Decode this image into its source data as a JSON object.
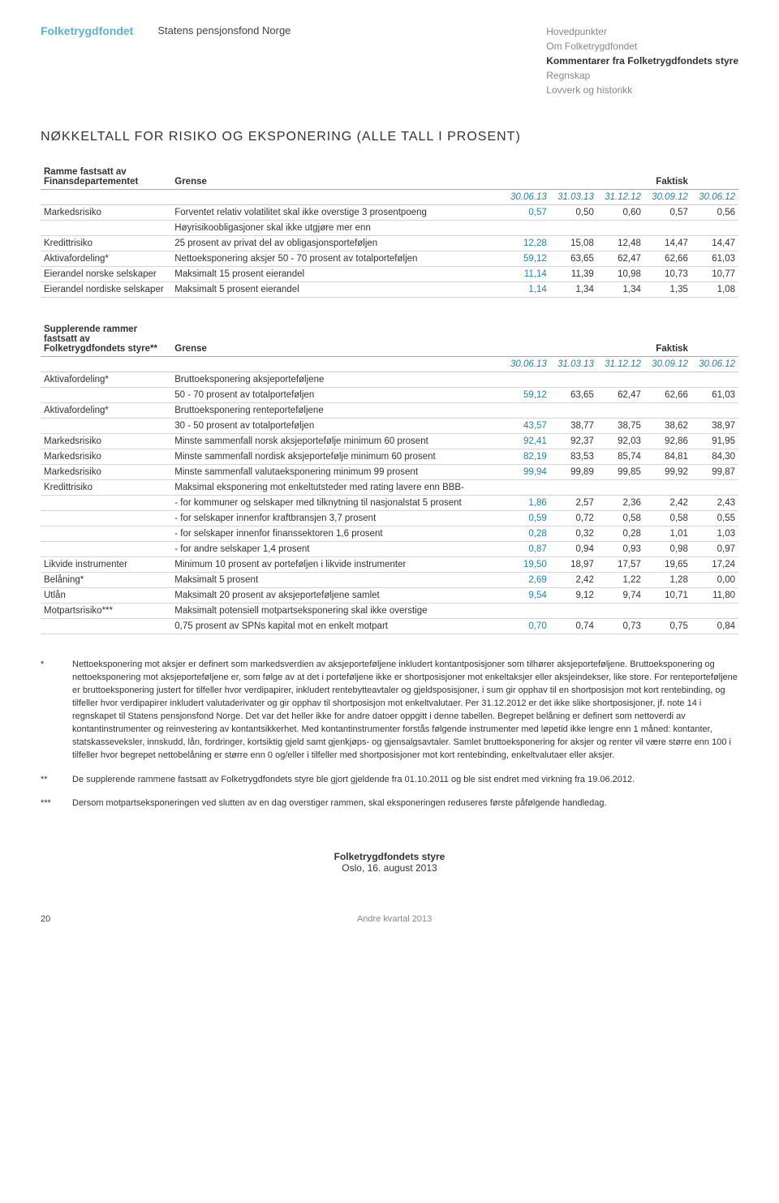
{
  "header": {
    "logo": "Folketrygdfondet",
    "org": "Statens pensjonsfond Norge",
    "nav": [
      "Hovedpunkter",
      "Om Folketrygdfondet",
      "Kommentarer fra Folketrygdfondets styre",
      "Regnskap",
      "Lovverk og historikk"
    ],
    "nav_bold_index": 2
  },
  "section_title": "NØKKELTALL FOR RISIKO OG EKSPONERING (ALLE TALL I PROSENT)",
  "table1": {
    "group_label_lines": [
      "Ramme fastsatt av",
      "Finansdepartementet"
    ],
    "col_grense": "Grense",
    "col_faktisk": "Faktisk",
    "dates": [
      "30.06.13",
      "31.03.13",
      "31.12.12",
      "30.09.12",
      "30.06.12"
    ],
    "rows": [
      {
        "cat": "Markedsrisiko",
        "desc": "Forventet relativ volatilitet skal ikke overstige 3 prosentpoeng",
        "vals": [
          "0,57",
          "0,50",
          "0,60",
          "0,57",
          "0,56"
        ]
      },
      {
        "cat": "",
        "desc": "Høyrisikoobligasjoner skal ikke utgjøre mer enn",
        "vals": [
          "",
          "",
          "",
          "",
          ""
        ]
      },
      {
        "cat": "Kredittrisiko",
        "desc": "25 prosent av privat del av obligasjonsporteføljen",
        "vals": [
          "12,28",
          "15,08",
          "12,48",
          "14,47",
          "14,47"
        ]
      },
      {
        "cat": "Aktivafordeling*",
        "desc": "Nettoeksponering aksjer 50 - 70 prosent av totalporteføljen",
        "vals": [
          "59,12",
          "63,65",
          "62,47",
          "62,66",
          "61,03"
        ]
      },
      {
        "cat": "Eierandel norske selskaper",
        "desc": "Maksimalt 15 prosent eierandel",
        "vals": [
          "11,14",
          "11,39",
          "10,98",
          "10,73",
          "10,77"
        ]
      },
      {
        "cat": "Eierandel nordiske selskaper",
        "desc": "Maksimalt 5 prosent eierandel",
        "vals": [
          "1,14",
          "1,34",
          "1,34",
          "1,35",
          "1,08"
        ]
      }
    ]
  },
  "table2": {
    "group_label_lines": [
      "Supplerende rammer",
      "fastsatt av",
      "Folketrygdfondets styre**"
    ],
    "col_grense": "Grense",
    "col_faktisk": "Faktisk",
    "dates": [
      "30.06.13",
      "31.03.13",
      "31.12.12",
      "30.09.12",
      "30.06.12"
    ],
    "rows": [
      {
        "cat": "Aktivafordeling*",
        "desc": "Bruttoeksponering aksjeporteføljene",
        "vals": [
          "",
          "",
          "",
          "",
          ""
        ]
      },
      {
        "cat": "",
        "desc": "50 - 70 prosent av totalporteføljen",
        "vals": [
          "59,12",
          "63,65",
          "62,47",
          "62,66",
          "61,03"
        ]
      },
      {
        "cat": "Aktivafordeling*",
        "desc": "Bruttoeksponering renteporteføljene",
        "vals": [
          "",
          "",
          "",
          "",
          ""
        ]
      },
      {
        "cat": "",
        "desc": "30 - 50 prosent av totalporteføljen",
        "vals": [
          "43,57",
          "38,77",
          "38,75",
          "38,62",
          "38,97"
        ]
      },
      {
        "cat": "Markedsrisiko",
        "desc": "Minste sammenfall norsk aksjeportefølje minimum 60 prosent",
        "vals": [
          "92,41",
          "92,37",
          "92,03",
          "92,86",
          "91,95"
        ]
      },
      {
        "cat": "Markedsrisiko",
        "desc": "Minste sammenfall nordisk aksjeportefølje minimum 60 prosent",
        "vals": [
          "82,19",
          "83,53",
          "85,74",
          "84,81",
          "84,30"
        ]
      },
      {
        "cat": "Markedsrisiko",
        "desc": "Minste sammenfall valutaeksponering minimum 99 prosent",
        "vals": [
          "99,94",
          "99,89",
          "99,85",
          "99,92",
          "99,87"
        ]
      },
      {
        "cat": "Kredittrisiko",
        "desc": "Maksimal eksponering mot enkeltutsteder med rating lavere enn BBB-",
        "vals": [
          "",
          "",
          "",
          "",
          ""
        ]
      },
      {
        "cat": "",
        "desc": "- for kommuner og selskaper med tilknytning til nasjonalstat 5 prosent",
        "vals": [
          "1,86",
          "2,57",
          "2,36",
          "2,42",
          "2,43"
        ]
      },
      {
        "cat": "",
        "desc": "- for selskaper innenfor kraftbransjen 3,7 prosent",
        "vals": [
          "0,59",
          "0,72",
          "0,58",
          "0,58",
          "0,55"
        ]
      },
      {
        "cat": "",
        "desc": "- for selskaper innenfor finanssektoren 1,6 prosent",
        "vals": [
          "0,28",
          "0,32",
          "0,28",
          "1,01",
          "1,03"
        ]
      },
      {
        "cat": "",
        "desc": "- for andre selskaper 1,4 prosent",
        "vals": [
          "0,87",
          "0,94",
          "0,93",
          "0,98",
          "0,97"
        ]
      },
      {
        "cat": "Likvide instrumenter",
        "desc": "Minimum 10 prosent av porteføljen i likvide instrumenter",
        "vals": [
          "19,50",
          "18,97",
          "17,57",
          "19,65",
          "17,24"
        ]
      },
      {
        "cat": "Belåning*",
        "desc": "Maksimalt 5 prosent",
        "vals": [
          "2,69",
          "2,42",
          "1,22",
          "1,28",
          "0,00"
        ]
      },
      {
        "cat": "Utlån",
        "desc": "Maksimalt 20 prosent av aksjeporteføljene samlet",
        "vals": [
          "9,54",
          "9,12",
          "9,74",
          "10,71",
          "11,80"
        ]
      },
      {
        "cat": "Motpartsrisiko***",
        "desc": "Maksimalt potensiell motpartseksponering skal ikke overstige",
        "vals": [
          "",
          "",
          "",
          "",
          ""
        ]
      },
      {
        "cat": "",
        "desc": "0,75 prosent av SPNs kapital mot en enkelt motpart",
        "vals": [
          "0,70",
          "0,74",
          "0,73",
          "0,75",
          "0,84"
        ]
      }
    ]
  },
  "footnotes": [
    {
      "mark": "*",
      "text": "Nettoeksponering mot aksjer er definert som markedsverdien av aksjeporteføljene inkludert kontantposisjoner som tilhører aksjeporteføljene. Bruttoeksponering og nettoeksponering mot aksjeporteføljene er, som følge av at det i porteføljene ikke er shortposisjoner mot enkeltaksjer eller aksjeindekser, like store. For renteporteføljene er bruttoeksponering justert for tilfeller hvor verdipapirer, inkludert rentebytteavtaler og gjeldsposisjoner, i sum gir opphav til en shortposisjon mot kort rentebinding, og tilfeller hvor verdipapirer inkludert valutaderivater og gir opphav til shortposisjon mot enkeltvalutaer. Per 31.12.2012 er det ikke slike shortposisjoner, jf. note 14 i regnskapet til Statens pensjonsfond Norge. Det var det heller ikke for andre datoer oppgitt i denne tabellen. Begrepet belåning er definert som nettoverdi av kontantinstrumenter og reinvestering av kontantsikkerhet. Med kontantinstrumenter forstås følgende instrumenter med løpetid ikke lengre enn 1 måned: kontanter, statskasseveksler, innskudd, lån, fordringer, kortsiktig gjeld samt gjenkjøps- og gjensalgsavtaler. Samlet bruttoeksponering for aksjer og renter vil være større enn 100 i tilfeller hvor begrepet nettobelåning er større enn 0 og/eller i tilfeller med shortposisjoner mot kort rentebinding, enkeltvalutaer eller aksjer."
    },
    {
      "mark": "**",
      "text": "De supplerende rammene fastsatt av Folketrygdfondets styre ble gjort gjeldende fra 01.10.2011 og ble sist endret med virkning fra 19.06.2012."
    },
    {
      "mark": "***",
      "text": "Dersom motpartseksponeringen ved slutten av en dag overstiger rammen, skal eksponeringen reduseres første påfølgende handledag."
    }
  ],
  "signature": {
    "name": "Folketrygdfondets styre",
    "place_date": "Oslo, 16. august 2013"
  },
  "footer": {
    "page": "20",
    "doc": "Andre kvartal 2013"
  }
}
